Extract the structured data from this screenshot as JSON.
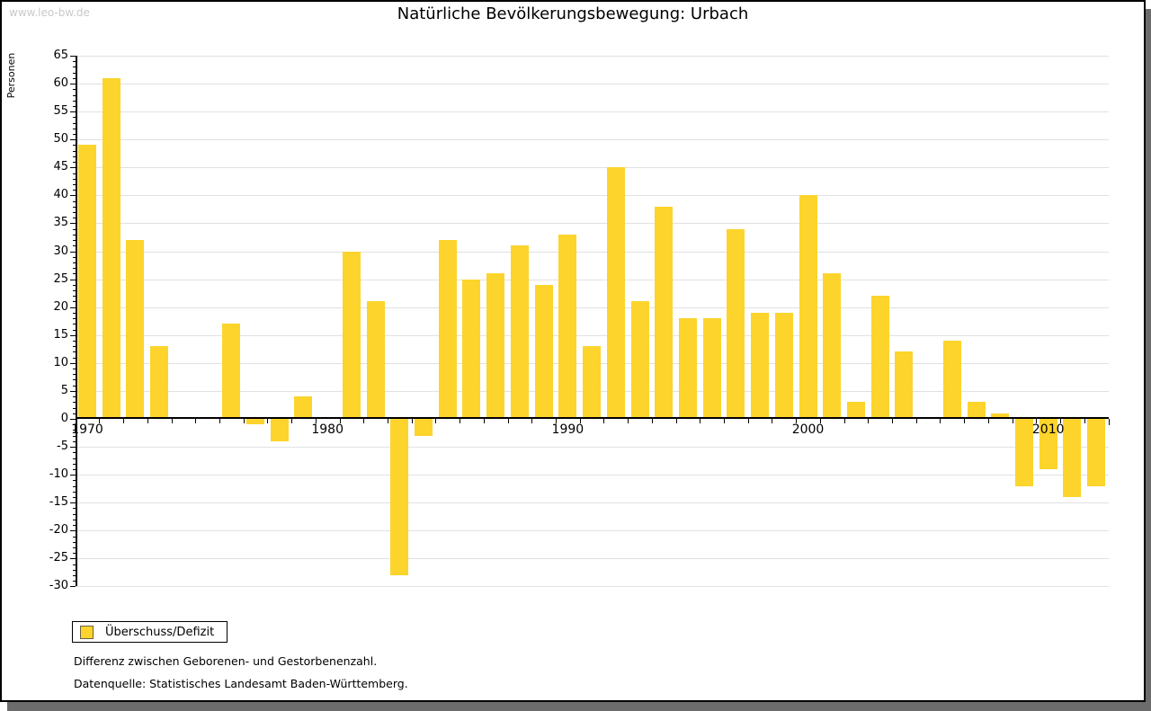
{
  "watermark": "www.leo-bw.de",
  "title": "Natürliche Bevölkerungsbewegung: Urbach",
  "legend": {
    "label": "Überschuss/Defizit"
  },
  "footnotes": [
    "Differenz zwischen Geborenen- und Gestorbenenzahl.",
    "Datenquelle: Statistisches Landesamt Baden-Württemberg."
  ],
  "colors": {
    "bar": "#FCD42C",
    "grid": "#E1E1E1",
    "axis": "#000000",
    "watermark": "#C9C9C9",
    "window_shadow": "#6C6C6C",
    "legend_swatch_border": "#6B6347"
  },
  "chart_data": {
    "type": "bar",
    "title": "Natürliche Bevölkerungsbewegung: Urbach",
    "ylabel": "Personen",
    "xlabel": "",
    "ylim": [
      -30,
      65
    ],
    "ytick_step": 5,
    "ytick_minor_step": 1,
    "grid": true,
    "legend_position": "bottom-left",
    "series_name": "Überschuss/Defizit",
    "x_decade_labels": [
      "1970",
      "1980",
      "1990",
      "2000",
      "2010"
    ],
    "years": [
      1970,
      1971,
      1972,
      1973,
      1974,
      1975,
      1976,
      1977,
      1978,
      1979,
      1980,
      1981,
      1982,
      1983,
      1984,
      1985,
      1986,
      1987,
      1988,
      1989,
      1990,
      1991,
      1992,
      1993,
      1994,
      1995,
      1996,
      1997,
      1998,
      1999,
      2000,
      2001,
      2002,
      2003,
      2004,
      2005,
      2006,
      2007,
      2008,
      2009,
      2010,
      2011,
      2012
    ],
    "values": [
      49,
      61,
      32,
      13,
      null,
      null,
      17,
      -1,
      -4,
      4,
      null,
      30,
      21,
      -28,
      -3,
      32,
      25,
      26,
      31,
      24,
      33,
      13,
      45,
      21,
      38,
      18,
      18,
      34,
      19,
      19,
      40,
      26,
      3,
      22,
      12,
      null,
      14,
      3,
      1,
      -12,
      -9,
      -14,
      -12
    ]
  }
}
